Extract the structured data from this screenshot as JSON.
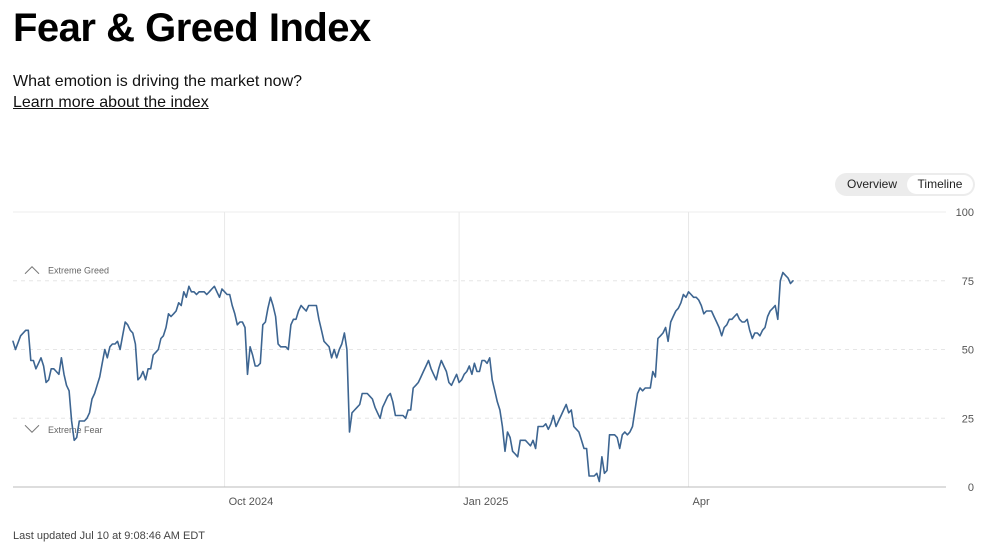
{
  "header": {
    "title": "Fear & Greed Index",
    "subtitle": "What emotion is driving the market now?",
    "learn_more": "Learn more about the index"
  },
  "toggle": {
    "overview_label": "Overview",
    "timeline_label": "Timeline",
    "selected": "Timeline"
  },
  "footer": {
    "last_updated": "Last updated Jul 10 at 9:08:46 AM EDT"
  },
  "chart_data": {
    "type": "line",
    "title": "",
    "xlabel": "",
    "ylabel": "",
    "ylim": [
      0,
      100
    ],
    "yticks": [
      0,
      25,
      50,
      75,
      100
    ],
    "xticks": [
      {
        "label": "Oct 2024",
        "x": 61
      },
      {
        "label": "Jan 2025",
        "x": 153
      },
      {
        "label": "Apr",
        "x": 243
      }
    ],
    "xlim": [
      -22,
      344
    ],
    "grid": true,
    "line_color": "#3d6591",
    "annotations": [
      {
        "label": "Extreme Greed",
        "y": 79,
        "icon": "chevron-up-icon"
      },
      {
        "label": "Extreme Fear",
        "y": 21,
        "icon": "chevron-down-icon"
      }
    ],
    "series": [
      {
        "values": [
          [
            -22,
            53
          ],
          [
            -21,
            50
          ],
          [
            -19,
            55
          ],
          [
            -17,
            57
          ],
          [
            -16,
            57
          ],
          [
            -15,
            46
          ],
          [
            -14,
            46
          ],
          [
            -13,
            43
          ],
          [
            -12,
            45
          ],
          [
            -11,
            47
          ],
          [
            -10,
            44
          ],
          [
            -9,
            38
          ],
          [
            -8,
            39
          ],
          [
            -7,
            43
          ],
          [
            -6,
            43
          ],
          [
            -5,
            42
          ],
          [
            -4,
            41
          ],
          [
            -3,
            47
          ],
          [
            -2,
            41
          ],
          [
            -1,
            37
          ],
          [
            0,
            35
          ],
          [
            1,
            24
          ],
          [
            2,
            17
          ],
          [
            3,
            18
          ],
          [
            4,
            24
          ],
          [
            5,
            24
          ],
          [
            6,
            24
          ],
          [
            7,
            25
          ],
          [
            8,
            27
          ],
          [
            9,
            32
          ],
          [
            10,
            34
          ],
          [
            11,
            37
          ],
          [
            12,
            40
          ],
          [
            13,
            45
          ],
          [
            14,
            50
          ],
          [
            15,
            47
          ],
          [
            16,
            51
          ],
          [
            17,
            52
          ],
          [
            18,
            52
          ],
          [
            19,
            53
          ],
          [
            20,
            50
          ],
          [
            21,
            55
          ],
          [
            22,
            60
          ],
          [
            23,
            59
          ],
          [
            24,
            57
          ],
          [
            25,
            56
          ],
          [
            26,
            52
          ],
          [
            27,
            39
          ],
          [
            28,
            40
          ],
          [
            29,
            42
          ],
          [
            30,
            39
          ],
          [
            31,
            43
          ],
          [
            32,
            43
          ],
          [
            33,
            48
          ],
          [
            34,
            49
          ],
          [
            35,
            50
          ],
          [
            36,
            54
          ],
          [
            37,
            55
          ],
          [
            38,
            58
          ],
          [
            39,
            63
          ],
          [
            40,
            62
          ],
          [
            41,
            63
          ],
          [
            42,
            64
          ],
          [
            43,
            67
          ],
          [
            44,
            66
          ],
          [
            45,
            71
          ],
          [
            46,
            69
          ],
          [
            47,
            73
          ],
          [
            48,
            71
          ],
          [
            49,
            71
          ],
          [
            50,
            70
          ],
          [
            51,
            71
          ],
          [
            52,
            71
          ],
          [
            53,
            71
          ],
          [
            54,
            70
          ],
          [
            55,
            71
          ],
          [
            56,
            72
          ],
          [
            57,
            73
          ],
          [
            58,
            71
          ],
          [
            59,
            69
          ],
          [
            60,
            72
          ],
          [
            61,
            71
          ],
          [
            62,
            70
          ],
          [
            63,
            70
          ],
          [
            64,
            66
          ],
          [
            65,
            63
          ],
          [
            66,
            59
          ],
          [
            67,
            60
          ],
          [
            68,
            60
          ],
          [
            69,
            58
          ],
          [
            70,
            41
          ],
          [
            71,
            51
          ],
          [
            72,
            48
          ],
          [
            73,
            44
          ],
          [
            74,
            44
          ],
          [
            75,
            45
          ],
          [
            76,
            59
          ],
          [
            77,
            60
          ],
          [
            78,
            65
          ],
          [
            79,
            69
          ],
          [
            80,
            66
          ],
          [
            81,
            62
          ],
          [
            82,
            52
          ],
          [
            83,
            51
          ],
          [
            84,
            51
          ],
          [
            85,
            51
          ],
          [
            86,
            50
          ],
          [
            87,
            59
          ],
          [
            88,
            61
          ],
          [
            89,
            61
          ],
          [
            90,
            64
          ],
          [
            91,
            66
          ],
          [
            92,
            65
          ],
          [
            93,
            64
          ],
          [
            94,
            66
          ],
          [
            95,
            66
          ],
          [
            96,
            66
          ],
          [
            97,
            66
          ],
          [
            98,
            61
          ],
          [
            99,
            57
          ],
          [
            100,
            53
          ],
          [
            101,
            52
          ],
          [
            102,
            51
          ],
          [
            103,
            47
          ],
          [
            104,
            50
          ],
          [
            105,
            47
          ],
          [
            106,
            50
          ],
          [
            107,
            52
          ],
          [
            108,
            56
          ],
          [
            109,
            50
          ],
          [
            110,
            20
          ],
          [
            111,
            27
          ],
          [
            112,
            28
          ],
          [
            113,
            29
          ],
          [
            114,
            30
          ],
          [
            115,
            34
          ],
          [
            116,
            34
          ],
          [
            117,
            34
          ],
          [
            118,
            33
          ],
          [
            119,
            32
          ],
          [
            120,
            29
          ],
          [
            121,
            27
          ],
          [
            122,
            25
          ],
          [
            123,
            29
          ],
          [
            124,
            31
          ],
          [
            125,
            33
          ],
          [
            126,
            34
          ],
          [
            127,
            31
          ],
          [
            128,
            26
          ],
          [
            129,
            26
          ],
          [
            130,
            26
          ],
          [
            131,
            26
          ],
          [
            132,
            25
          ],
          [
            133,
            28
          ],
          [
            134,
            28
          ],
          [
            135,
            36
          ],
          [
            136,
            37
          ],
          [
            137,
            38
          ],
          [
            138,
            40
          ],
          [
            139,
            42
          ],
          [
            140,
            44
          ],
          [
            141,
            46
          ],
          [
            142,
            43
          ],
          [
            143,
            41
          ],
          [
            144,
            39
          ],
          [
            145,
            43
          ],
          [
            146,
            46
          ],
          [
            147,
            44
          ],
          [
            148,
            42
          ],
          [
            149,
            38
          ],
          [
            150,
            37
          ],
          [
            151,
            39
          ],
          [
            152,
            41
          ],
          [
            153,
            38
          ],
          [
            154,
            39
          ],
          [
            155,
            41
          ],
          [
            156,
            42
          ],
          [
            157,
            44
          ],
          [
            158,
            41
          ],
          [
            159,
            45
          ],
          [
            160,
            42
          ],
          [
            161,
            42
          ],
          [
            162,
            46
          ],
          [
            163,
            46
          ],
          [
            164,
            45
          ],
          [
            165,
            47
          ],
          [
            166,
            39
          ],
          [
            167,
            35
          ],
          [
            168,
            31
          ],
          [
            169,
            28
          ],
          [
            170,
            22
          ],
          [
            171,
            13
          ],
          [
            172,
            20
          ],
          [
            173,
            18
          ],
          [
            174,
            13
          ],
          [
            175,
            12
          ],
          [
            176,
            11
          ],
          [
            177,
            17
          ],
          [
            178,
            17
          ],
          [
            179,
            17
          ],
          [
            180,
            16
          ],
          [
            181,
            15
          ],
          [
            182,
            17
          ],
          [
            183,
            14
          ],
          [
            184,
            22
          ],
          [
            185,
            22
          ],
          [
            186,
            22
          ],
          [
            187,
            23
          ],
          [
            188,
            21
          ],
          [
            189,
            23
          ],
          [
            190,
            26
          ],
          [
            191,
            22
          ],
          [
            192,
            24
          ],
          [
            193,
            26
          ],
          [
            194,
            28
          ],
          [
            195,
            30
          ],
          [
            196,
            27
          ],
          [
            197,
            28
          ],
          [
            198,
            22
          ],
          [
            199,
            21
          ],
          [
            200,
            20
          ],
          [
            201,
            17
          ],
          [
            202,
            14
          ],
          [
            203,
            14
          ],
          [
            204,
            4
          ],
          [
            205,
            4
          ],
          [
            206,
            4
          ],
          [
            207,
            5
          ],
          [
            208,
            2
          ],
          [
            209,
            11
          ],
          [
            210,
            5
          ],
          [
            211,
            6
          ],
          [
            212,
            19
          ],
          [
            213,
            19
          ],
          [
            214,
            19
          ],
          [
            215,
            18
          ],
          [
            216,
            14
          ],
          [
            217,
            19
          ],
          [
            218,
            20
          ],
          [
            219,
            19
          ],
          [
            220,
            20
          ],
          [
            221,
            22
          ],
          [
            222,
            28
          ],
          [
            223,
            34
          ],
          [
            224,
            36
          ],
          [
            225,
            35
          ],
          [
            226,
            36
          ],
          [
            227,
            36
          ],
          [
            228,
            36
          ],
          [
            229,
            42
          ],
          [
            230,
            40
          ],
          [
            231,
            54
          ],
          [
            232,
            55
          ],
          [
            233,
            56
          ],
          [
            234,
            58
          ],
          [
            235,
            53
          ],
          [
            236,
            60
          ],
          [
            237,
            62
          ],
          [
            238,
            64
          ],
          [
            239,
            65
          ],
          [
            240,
            67
          ],
          [
            241,
            70
          ],
          [
            242,
            69
          ],
          [
            243,
            71
          ],
          [
            244,
            70
          ],
          [
            245,
            69
          ],
          [
            246,
            69
          ],
          [
            247,
            68
          ],
          [
            248,
            66
          ],
          [
            249,
            63
          ],
          [
            250,
            64
          ],
          [
            251,
            64
          ],
          [
            252,
            64
          ],
          [
            253,
            62
          ],
          [
            254,
            60
          ],
          [
            255,
            58
          ],
          [
            256,
            55
          ],
          [
            257,
            58
          ],
          [
            258,
            59
          ],
          [
            259,
            61
          ],
          [
            260,
            61
          ],
          [
            261,
            62
          ],
          [
            262,
            63
          ],
          [
            263,
            61
          ],
          [
            264,
            60
          ],
          [
            265,
            60
          ],
          [
            266,
            61
          ],
          [
            267,
            57
          ],
          [
            268,
            54
          ],
          [
            269,
            56
          ],
          [
            270,
            56
          ],
          [
            271,
            55
          ],
          [
            272,
            57
          ],
          [
            273,
            58
          ],
          [
            274,
            62
          ],
          [
            275,
            64
          ],
          [
            276,
            65
          ],
          [
            277,
            66
          ],
          [
            278,
            61
          ],
          [
            279,
            75
          ],
          [
            280,
            78
          ],
          [
            281,
            77
          ],
          [
            282,
            76
          ],
          [
            283,
            74
          ],
          [
            284,
            75
          ]
        ]
      }
    ]
  }
}
